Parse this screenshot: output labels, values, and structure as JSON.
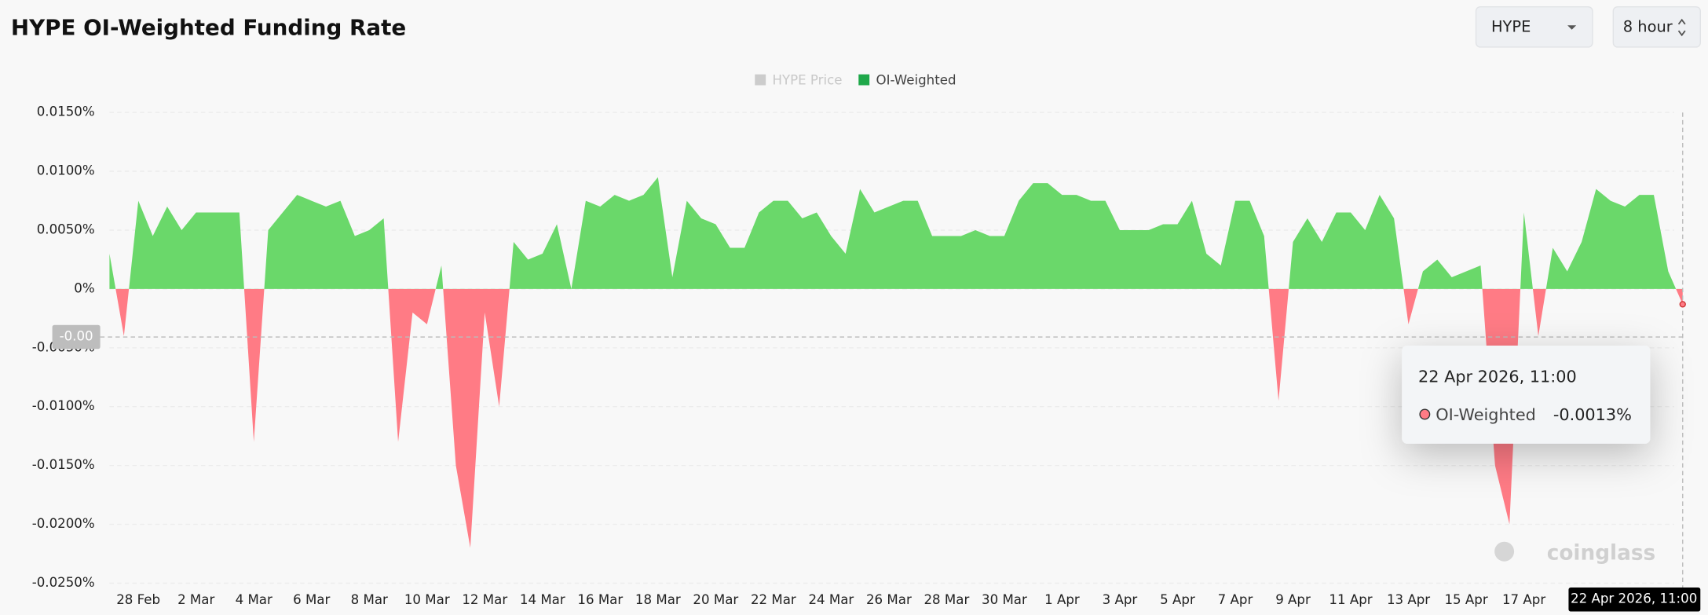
{
  "title": "HYPE OI-Weighted Funding Rate",
  "selectors": [
    "HYPE",
    "8 hour"
  ],
  "watermark": "coinglass",
  "chart_data": {
    "type": "area",
    "series": [
      {
        "name": "HYPE Price",
        "color": "#c8c8c8",
        "visible": false
      },
      {
        "name": "OI-Weighted",
        "color": "#1fa84a",
        "positive_color": "#6ad86a",
        "negative_color": "#ff7b85",
        "visible": true,
        "values": [
          0.003,
          -0.004,
          0.0075,
          0.0045,
          0.007,
          0.005,
          0.0065,
          0.0065,
          0.0065,
          0.0065,
          -0.013,
          0.005,
          0.0065,
          0.008,
          0.0075,
          0.007,
          0.0075,
          0.0045,
          0.005,
          0.006,
          -0.013,
          -0.002,
          -0.003,
          0.002,
          -0.015,
          -0.022,
          -0.002,
          -0.01,
          0.004,
          0.0025,
          0.003,
          0.0055,
          0.0,
          0.0075,
          0.007,
          0.008,
          0.0075,
          0.008,
          0.0095,
          0.001,
          0.0075,
          0.006,
          0.0055,
          0.0035,
          0.0035,
          0.0065,
          0.0075,
          0.0075,
          0.006,
          0.0065,
          0.0045,
          0.003,
          0.0085,
          0.0065,
          0.007,
          0.0075,
          0.0075,
          0.0045,
          0.0045,
          0.0045,
          0.005,
          0.0045,
          0.0045,
          0.0075,
          0.009,
          0.009,
          0.008,
          0.008,
          0.0075,
          0.0075,
          0.005,
          0.005,
          0.005,
          0.0055,
          0.0055,
          0.0075,
          0.003,
          0.002,
          0.0075,
          0.0075,
          0.0045,
          -0.0095,
          0.004,
          0.006,
          0.004,
          0.0065,
          0.0065,
          0.005,
          0.008,
          0.006,
          -0.003,
          0.0015,
          0.0025,
          0.001,
          0.0015,
          0.002,
          -0.015,
          -0.02,
          0.0065,
          -0.004,
          0.0035,
          0.0015,
          0.004,
          0.0085,
          0.0075,
          0.007,
          0.008,
          0.008,
          0.0015,
          -0.0013
        ]
      }
    ],
    "categories": [
      null,
      null,
      "28 Feb",
      null,
      null,
      null,
      "2 Mar",
      null,
      null,
      null,
      "4 Mar",
      null,
      null,
      null,
      "6 Mar",
      null,
      null,
      null,
      "8 Mar",
      null,
      null,
      null,
      "10 Mar",
      null,
      null,
      null,
      "12 Mar",
      null,
      null,
      null,
      "14 Mar",
      null,
      null,
      null,
      "16 Mar",
      null,
      null,
      null,
      "18 Mar",
      null,
      null,
      null,
      "20 Mar",
      null,
      null,
      null,
      "22 Mar",
      null,
      null,
      null,
      "24 Mar",
      null,
      null,
      null,
      "26 Mar",
      null,
      null,
      null,
      "28 Mar",
      null,
      null,
      null,
      "30 Mar",
      null,
      null,
      null,
      "1 Apr",
      null,
      null,
      null,
      "3 Apr",
      null,
      null,
      null,
      "5 Apr",
      null,
      null,
      null,
      "7 Apr",
      null,
      null,
      null,
      "9 Apr",
      null,
      null,
      null,
      "11 Apr",
      null,
      null,
      null,
      "13 Apr",
      null,
      null,
      null,
      "15 Apr",
      null,
      null,
      null,
      "17 Apr",
      null,
      null,
      null,
      null,
      null,
      null,
      null,
      null,
      null,
      null,
      null
    ],
    "ylim": [
      -0.025,
      0.015
    ],
    "yticks": [
      {
        "value": 0.015,
        "label": "0.0150%"
      },
      {
        "value": 0.01,
        "label": "0.0100%"
      },
      {
        "value": 0.005,
        "label": "0.0050%"
      },
      {
        "value": 0,
        "label": "0%"
      },
      {
        "value": -0.005,
        "label": "-0.0050%"
      },
      {
        "value": -0.01,
        "label": "-0.0100%"
      },
      {
        "value": -0.015,
        "label": "-0.0150%"
      },
      {
        "value": -0.02,
        "label": "-0.0200%"
      },
      {
        "value": -0.025,
        "label": "-0.0250%"
      }
    ],
    "grid": true,
    "tooltip": {
      "title": "22 Apr 2026, 11:00",
      "value_label": "-0.0013%"
    },
    "crosshair_y_label": "-0.00"
  }
}
